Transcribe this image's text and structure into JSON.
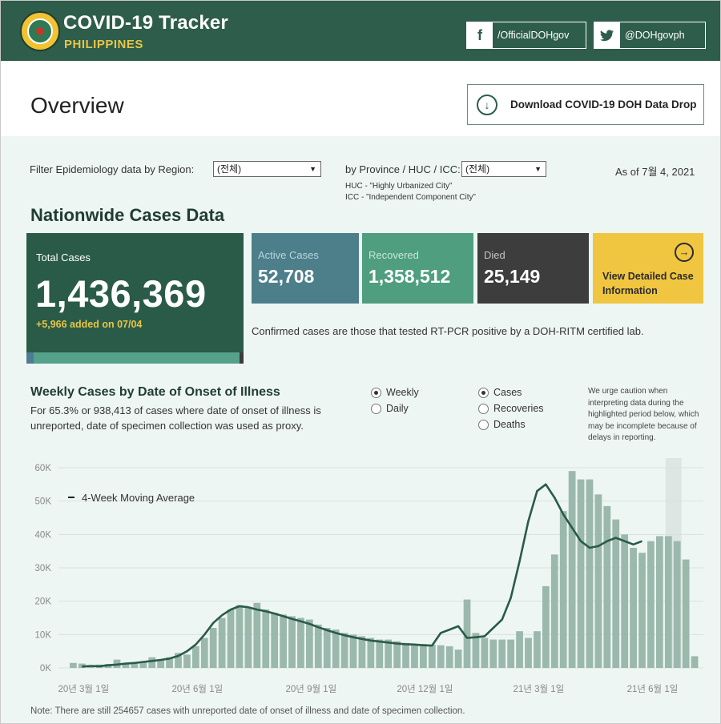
{
  "header": {
    "title": "COVID-19 Tracker",
    "subtitle": "PHILIPPINES",
    "facebook_label": "/OfficialDOHgov",
    "twitter_label": "@DOHgovph",
    "facebook_glyph": "f",
    "twitter_glyph": "🐦"
  },
  "overview": {
    "title": "Overview",
    "download_label": "Download COVID-19 DOH Data Drop",
    "download_glyph": "↓"
  },
  "filters": {
    "region_label": "Filter Epidemiology data by Region:",
    "region_value": "(전체)",
    "province_label": "by Province / HUC / ICC:",
    "province_value": "(전체)",
    "huc_note": "HUC - ”Highly Urbanized City”",
    "icc_note": "ICC - ”Independent Component City”",
    "as_of": "As of 7월 4, 2021"
  },
  "nationwide": {
    "title": "Nationwide Cases Data",
    "total_label": "Total Cases",
    "total_value": "1,436,369",
    "added": "+5,966 added on 07/04",
    "active_label": "Active Cases",
    "active_value": "52,708",
    "recovered_label": "Recovered",
    "recovered_value": "1,358,512",
    "died_label": "Died",
    "died_value": "25,149",
    "view_label": "View Detailed Case Information",
    "view_glyph": "→",
    "confirmed_note": "Confirmed cases are those that tested RT-PCR positive by a DOH-RITM certified lab."
  },
  "weekly": {
    "title": "Weekly Cases by Date of Onset of Illness",
    "description": "For 65.3% or 938,413 of cases where date of onset of illness is unreported, date of specimen collection was used as proxy.",
    "period_options": [
      "Weekly",
      "Daily"
    ],
    "metric_options": [
      "Cases",
      "Recoveries",
      "Deaths"
    ],
    "selected_period": "Weekly",
    "selected_metric": "Cases",
    "caution": "We urge caution when interpreting data during the highlighted period below, which may be incomplete because of delays in reporting."
  },
  "chart_data": {
    "type": "bar",
    "title": "",
    "xlabel": "",
    "ylabel": "",
    "ylim": [
      0,
      60000
    ],
    "y_ticks": [
      "0K",
      "10K",
      "20K",
      "30K",
      "40K",
      "50K",
      "60K"
    ],
    "x_tick_labels": [
      "20년 3월 1일",
      "20년 6월 1일",
      "20년 9월 1일",
      "20년 12월 1일",
      "21년 3월 1일",
      "21년 6월 1일"
    ],
    "x_tick_week_index": [
      2,
      15,
      28,
      41,
      54,
      67
    ],
    "legend": "4-Week Moving Average",
    "legend_position": "top-left",
    "highlight_weeks": [
      69,
      70
    ],
    "bar_color": "#9bb8ad",
    "line_color": "#2a5b48",
    "grid": true,
    "series": [
      {
        "values": [
          0,
          1500,
          1300,
          800,
          1000,
          1200,
          2500,
          1500,
          1600,
          1800,
          3200,
          2500,
          3200,
          4500,
          4000,
          6500,
          9000,
          12000,
          15000,
          17500,
          18800,
          18000,
          19500,
          17500,
          16500,
          16000,
          15500,
          15000,
          14500,
          13000,
          12000,
          11500,
          10500,
          10000,
          9500,
          9000,
          8500,
          8500,
          8000,
          7500,
          7000,
          7200,
          7000,
          6800,
          6500,
          5500,
          20500,
          10500,
          9000,
          8500,
          8500,
          8500,
          11000,
          9000,
          11000,
          24500,
          34000,
          47000,
          59000,
          56500,
          56500,
          52000,
          48500,
          44500,
          40000,
          36000,
          34500,
          38000,
          39500,
          39500,
          38000,
          32500,
          3500
        ]
      },
      {
        "values": [
          null,
          null,
          400,
          600,
          500,
          800,
          1000,
          1300,
          1500,
          1800,
          2100,
          2400,
          2800,
          3600,
          5000,
          7000,
          10000,
          13500,
          15800,
          17500,
          18500,
          18200,
          17500,
          17000,
          16300,
          15500,
          14700,
          14000,
          13200,
          12200,
          11300,
          10500,
          9800,
          9200,
          8700,
          8200,
          7900,
          7600,
          7300,
          7100,
          7000,
          6800,
          6700,
          10500,
          11500,
          12500,
          9000,
          9200,
          9500,
          12000,
          14500,
          21000,
          32000,
          44000,
          53000,
          55000,
          51000,
          46000,
          42000,
          38000,
          36000,
          36500,
          38000,
          39000,
          38000,
          37000,
          38000
        ]
      }
    ]
  },
  "footnote": "Note: There are still 254657 cases with unreported date of onset of illness and date of specimen collection."
}
